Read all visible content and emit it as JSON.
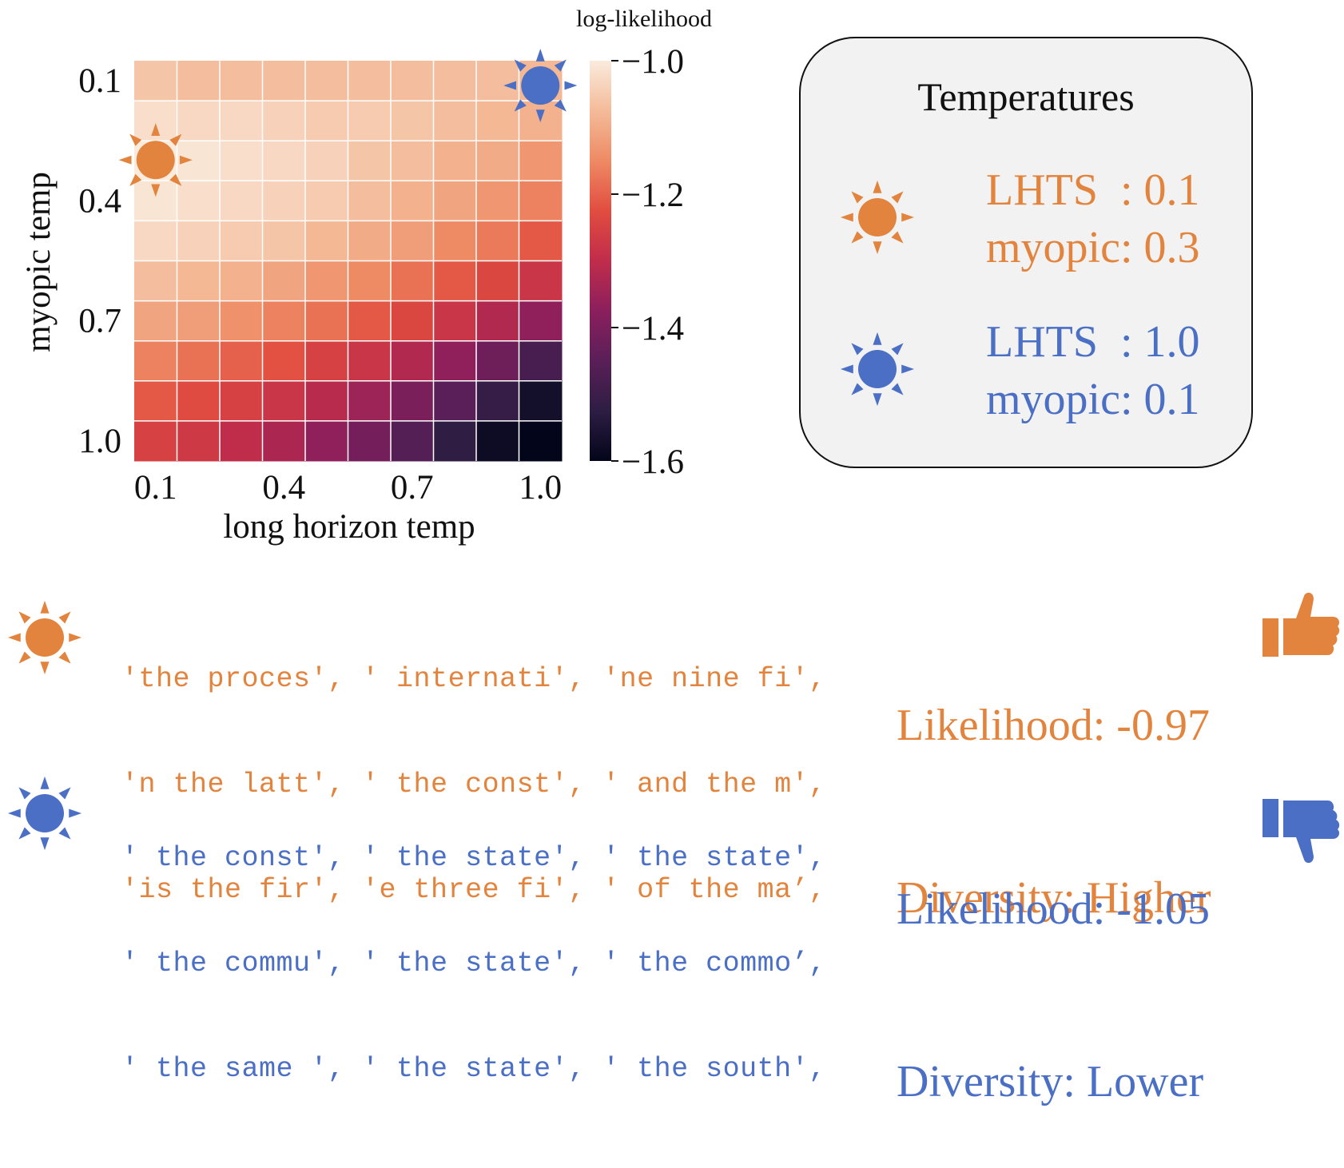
{
  "colors": {
    "orange": "#E2843D",
    "blue": "#4A6FC4"
  },
  "chart_data": {
    "type": "heatmap",
    "xlabel": "long horizon temp",
    "ylabel": "myopic temp",
    "x_tick_labels": [
      "0.1",
      "0.4",
      "0.7",
      "1.0"
    ],
    "y_tick_labels": [
      "0.1",
      "0.4",
      "0.7",
      "1.0"
    ],
    "x": [
      0.1,
      0.2,
      0.3,
      0.4,
      0.5,
      0.6,
      0.7,
      0.8,
      0.9,
      1.0
    ],
    "y": [
      0.1,
      0.2,
      0.3,
      0.4,
      0.5,
      0.6,
      0.7,
      0.8,
      0.9,
      1.0
    ],
    "values": [
      [
        -1.06,
        -1.07,
        -1.07,
        -1.07,
        -1.07,
        -1.07,
        -1.07,
        -1.07,
        -1.07,
        -1.08
      ],
      [
        -1.02,
        -1.03,
        -1.03,
        -1.04,
        -1.05,
        -1.05,
        -1.06,
        -1.07,
        -1.08,
        -1.09
      ],
      [
        -1.0,
        -1.01,
        -1.02,
        -1.03,
        -1.04,
        -1.06,
        -1.07,
        -1.09,
        -1.1,
        -1.13
      ],
      [
        -1.01,
        -1.02,
        -1.03,
        -1.04,
        -1.05,
        -1.07,
        -1.09,
        -1.11,
        -1.13,
        -1.16
      ],
      [
        -1.03,
        -1.04,
        -1.05,
        -1.06,
        -1.08,
        -1.1,
        -1.12,
        -1.15,
        -1.17,
        -1.21
      ],
      [
        -1.07,
        -1.08,
        -1.09,
        -1.11,
        -1.13,
        -1.15,
        -1.18,
        -1.21,
        -1.24,
        -1.28
      ],
      [
        -1.11,
        -1.12,
        -1.14,
        -1.16,
        -1.18,
        -1.21,
        -1.24,
        -1.28,
        -1.32,
        -1.37
      ],
      [
        -1.16,
        -1.18,
        -1.2,
        -1.22,
        -1.25,
        -1.28,
        -1.32,
        -1.37,
        -1.42,
        -1.48
      ],
      [
        -1.21,
        -1.23,
        -1.25,
        -1.28,
        -1.31,
        -1.35,
        -1.4,
        -1.45,
        -1.51,
        -1.57
      ],
      [
        -1.25,
        -1.27,
        -1.3,
        -1.33,
        -1.37,
        -1.41,
        -1.46,
        -1.52,
        -1.58,
        -1.6
      ]
    ],
    "colorbar": {
      "label": "log-likelihood",
      "range": [
        -1.6,
        -1.0
      ],
      "ticks": [
        -1.0,
        -1.2,
        -1.4,
        -1.6
      ],
      "tick_labels": [
        "−1.0",
        "−1.2",
        "−1.4",
        "−1.6"
      ],
      "colormap": "rocket"
    },
    "markers": [
      {
        "name": "orange-sun",
        "x": 0.1,
        "y": 0.3,
        "color": "#E2843D"
      },
      {
        "name": "blue-sun",
        "x": 1.0,
        "y": 0.1,
        "color": "#4A6FC4"
      }
    ]
  },
  "legend": {
    "title": "Temperatures",
    "orange_lhts": "LHTS  : 0.1",
    "orange_myopic": "myopic: 0.3",
    "blue_lhts": "LHTS  : 1.0",
    "blue_myopic": "myopic: 0.1"
  },
  "samples": {
    "orange": {
      "lines": [
        "'the proces', ' internati', 'ne nine fi',",
        "'n the latt', ' the const', ' and the m',",
        "'is the fir', 'e three fi', ' of the ma’,"
      ],
      "likelihood": "Likelihood: -0.97",
      "diversity": "Diversity: Higher"
    },
    "blue": {
      "lines": [
        "' the const', ' the state', ' the state',",
        "' the commu', ' the state', ' the commo’,",
        "' the same ', ' the state', ' the south',"
      ],
      "likelihood": "Likelihood: -1.05",
      "diversity": "Diversity: Lower"
    }
  },
  "icons": {
    "sun": "sun-icon",
    "thumbs_up": "thumbs-up-icon",
    "thumbs_down": "thumbs-down-icon"
  }
}
